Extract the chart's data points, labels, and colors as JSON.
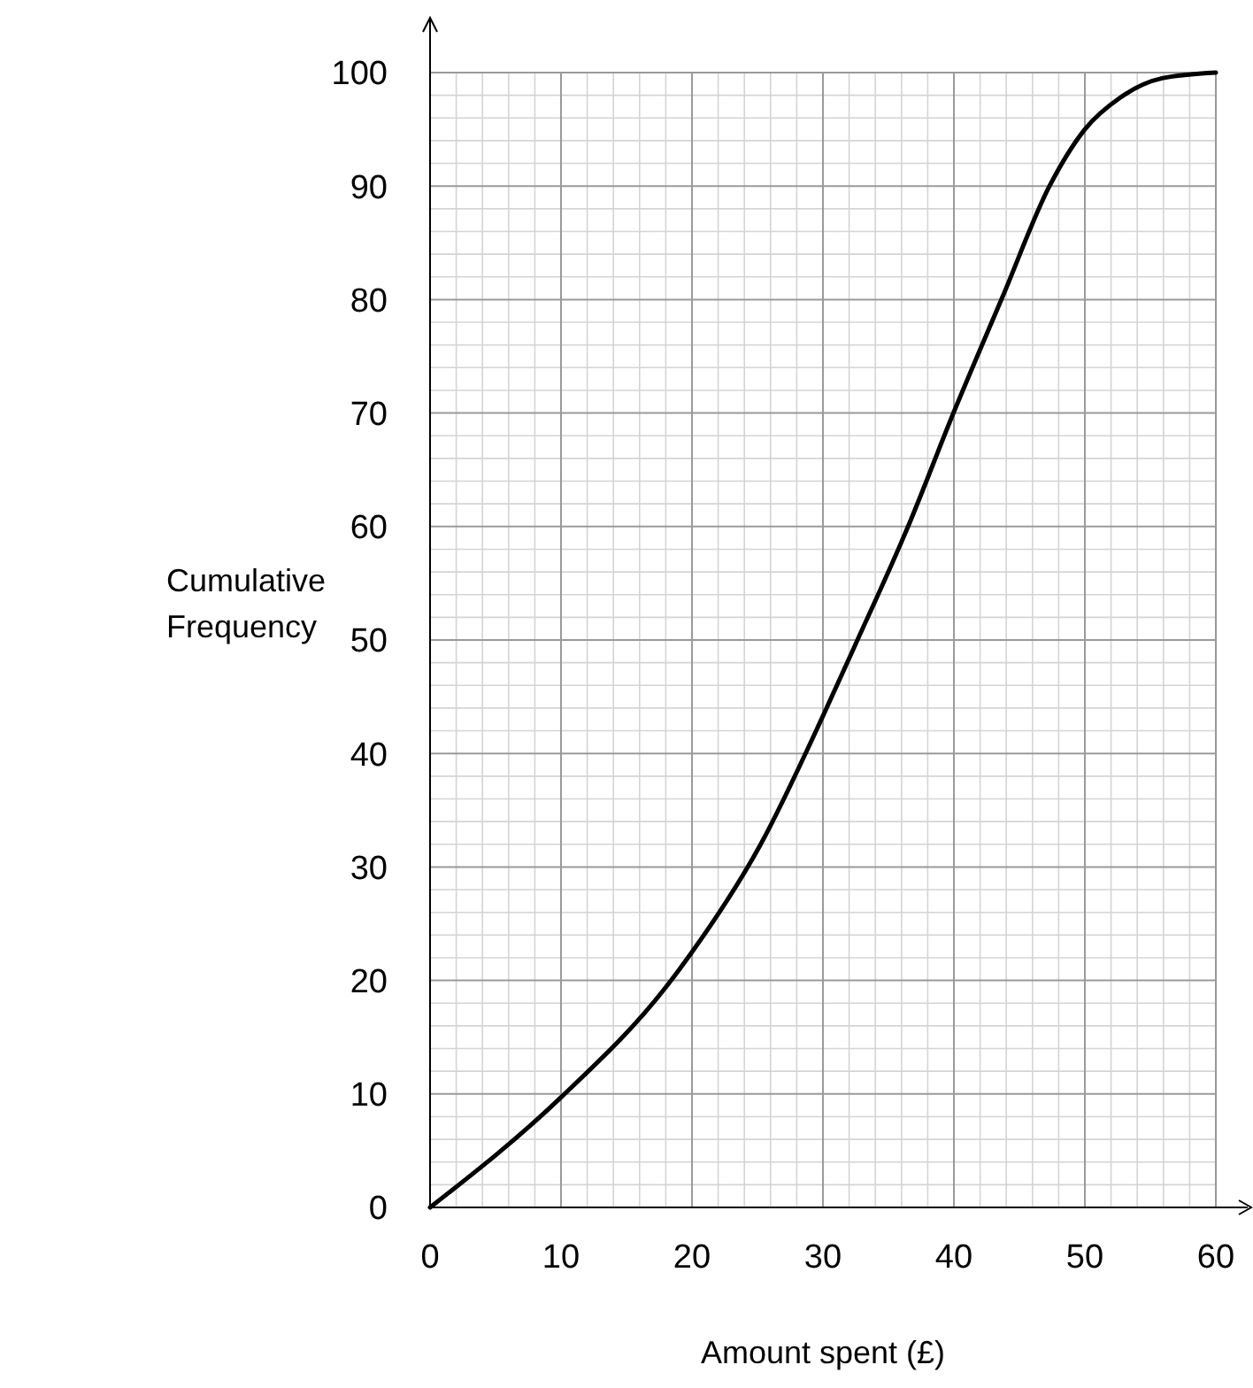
{
  "chart_data": {
    "type": "line",
    "xlabel": "Amount spent (£)",
    "ylabel": "Cumulative\nFrequency",
    "xlim": [
      0,
      60
    ],
    "ylim": [
      0,
      100
    ],
    "xticks": [
      0,
      10,
      20,
      30,
      40,
      50,
      60
    ],
    "yticks": [
      0,
      10,
      20,
      30,
      40,
      50,
      60,
      70,
      80,
      90,
      100
    ],
    "grid": true,
    "marker": "none",
    "line_style": "solid",
    "series": [
      {
        "color": "#000000",
        "x": [
          0,
          10,
          18,
          20,
          25.2,
          30,
          32.4,
          36.5,
          40,
          43.7,
          47.3,
          50,
          52.7,
          55.9,
          60
        ],
        "values": [
          0,
          9.7,
          19.4,
          22.5,
          31.9,
          43.3,
          49.4,
          60,
          70.1,
          80.2,
          90,
          95,
          97.8,
          99.5,
          100
        ]
      }
    ]
  }
}
